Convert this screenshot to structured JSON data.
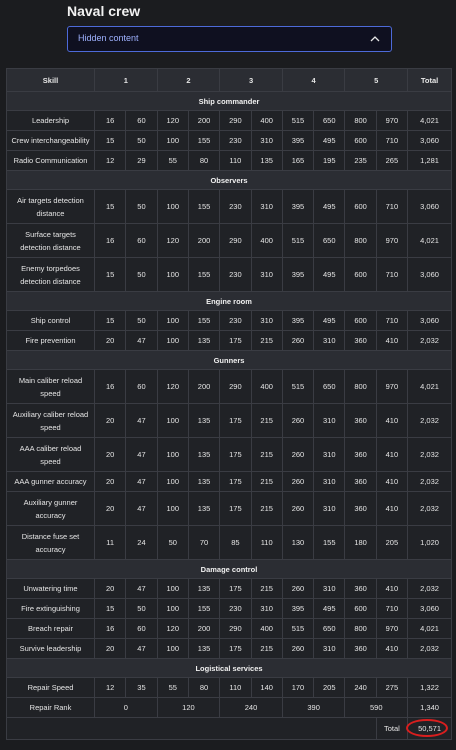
{
  "title": "Naval crew",
  "hidden": {
    "label": "Hidden content"
  },
  "headers": {
    "skill": "Skill",
    "l1": "1",
    "l2": "2",
    "l3": "3",
    "l4": "4",
    "l5": "5",
    "total": "Total"
  },
  "sections": [
    {
      "name": "Ship commander",
      "rows": [
        {
          "skill": "Leadership",
          "values": [
            "16",
            "60",
            "120",
            "200",
            "290",
            "400",
            "515",
            "650",
            "800",
            "970"
          ],
          "total": "4,021"
        },
        {
          "skill": "Crew interchangeability",
          "values": [
            "15",
            "50",
            "100",
            "155",
            "230",
            "310",
            "395",
            "495",
            "600",
            "710"
          ],
          "total": "3,060"
        },
        {
          "skill": "Radio Communication",
          "values": [
            "12",
            "29",
            "55",
            "80",
            "110",
            "135",
            "165",
            "195",
            "235",
            "265"
          ],
          "total": "1,281"
        }
      ]
    },
    {
      "name": "Observers",
      "rows": [
        {
          "skill": "Air targets detection distance",
          "values": [
            "15",
            "50",
            "100",
            "155",
            "230",
            "310",
            "395",
            "495",
            "600",
            "710"
          ],
          "total": "3,060"
        },
        {
          "skill": "Surface targets detection distance",
          "values": [
            "16",
            "60",
            "120",
            "200",
            "290",
            "400",
            "515",
            "650",
            "800",
            "970"
          ],
          "total": "4,021"
        },
        {
          "skill": "Enemy torpedoes detection distance",
          "values": [
            "15",
            "50",
            "100",
            "155",
            "230",
            "310",
            "395",
            "495",
            "600",
            "710"
          ],
          "total": "3,060"
        }
      ]
    },
    {
      "name": "Engine room",
      "rows": [
        {
          "skill": "Ship control",
          "values": [
            "15",
            "50",
            "100",
            "155",
            "230",
            "310",
            "395",
            "495",
            "600",
            "710"
          ],
          "total": "3,060"
        },
        {
          "skill": "Fire prevention",
          "values": [
            "20",
            "47",
            "100",
            "135",
            "175",
            "215",
            "260",
            "310",
            "360",
            "410"
          ],
          "total": "2,032"
        }
      ]
    },
    {
      "name": "Gunners",
      "rows": [
        {
          "skill": "Main caliber reload speed",
          "values": [
            "16",
            "60",
            "120",
            "200",
            "290",
            "400",
            "515",
            "650",
            "800",
            "970"
          ],
          "total": "4,021"
        },
        {
          "skill": "Auxiliary caliber reload speed",
          "values": [
            "20",
            "47",
            "100",
            "135",
            "175",
            "215",
            "260",
            "310",
            "360",
            "410"
          ],
          "total": "2,032"
        },
        {
          "skill": "AAA caliber reload speed",
          "values": [
            "20",
            "47",
            "100",
            "135",
            "175",
            "215",
            "260",
            "310",
            "360",
            "410"
          ],
          "total": "2,032"
        },
        {
          "skill": "AAA gunner accuracy",
          "values": [
            "20",
            "47",
            "100",
            "135",
            "175",
            "215",
            "260",
            "310",
            "360",
            "410"
          ],
          "total": "2,032"
        },
        {
          "skill": "Auxiliary gunner accuracy",
          "values": [
            "20",
            "47",
            "100",
            "135",
            "175",
            "215",
            "260",
            "310",
            "360",
            "410"
          ],
          "total": "2,032"
        },
        {
          "skill": "Distance fuse set accuracy",
          "values": [
            "11",
            "24",
            "50",
            "70",
            "85",
            "110",
            "130",
            "155",
            "180",
            "205"
          ],
          "total": "1,020"
        }
      ]
    },
    {
      "name": "Damage control",
      "rows": [
        {
          "skill": "Unwatering time",
          "values": [
            "20",
            "47",
            "100",
            "135",
            "175",
            "215",
            "260",
            "310",
            "360",
            "410"
          ],
          "total": "2,032"
        },
        {
          "skill": "Fire extinguishing",
          "values": [
            "15",
            "50",
            "100",
            "155",
            "230",
            "310",
            "395",
            "495",
            "600",
            "710"
          ],
          "total": "3,060"
        },
        {
          "skill": "Breach repair",
          "values": [
            "16",
            "60",
            "120",
            "200",
            "290",
            "400",
            "515",
            "650",
            "800",
            "970"
          ],
          "total": "4,021"
        },
        {
          "skill": "Survive leadership",
          "values": [
            "20",
            "47",
            "100",
            "135",
            "175",
            "215",
            "260",
            "310",
            "360",
            "410"
          ],
          "total": "2,032"
        }
      ]
    },
    {
      "name": "Logistical services",
      "rows": [
        {
          "skill": "Repair Speed",
          "values": [
            "12",
            "35",
            "55",
            "80",
            "110",
            "140",
            "170",
            "205",
            "240",
            "275"
          ],
          "total": "1,322"
        }
      ]
    }
  ],
  "repair_rank": {
    "skill": "Repair Rank",
    "values": [
      "0",
      "120",
      "240",
      "390",
      "590"
    ],
    "total": "1,340"
  },
  "footer": {
    "label": "Total",
    "value": "50,571"
  },
  "colors": {
    "highlight": "#d91e1e",
    "accent_border": "#4d6ad9"
  }
}
